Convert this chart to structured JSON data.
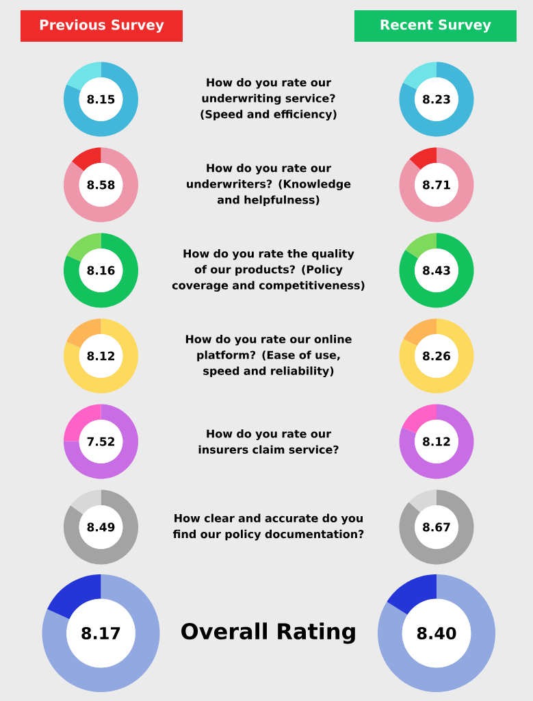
{
  "chart_data": [
    {
      "type": "other",
      "annotations": [
        "Previous Survey",
        "Recent Survey"
      ],
      "colors": [
        "#ee2b2b",
        "#12c167"
      ]
    },
    {
      "type": "donut",
      "categories": [
        null,
        null
      ],
      "values": [
        81.5,
        18.5
      ],
      "colors": [
        "#42b7d9",
        "#6fe3e8"
      ],
      "annotations": [
        "8.15"
      ]
    },
    {
      "type": "other",
      "title": "How do you rate our underwriting service? (Speed and efficiency)"
    },
    {
      "type": "donut",
      "categories": [
        null,
        null
      ],
      "values": [
        82.3,
        17.7
      ],
      "colors": [
        "#42b7d9",
        "#6fe3e8"
      ],
      "annotations": [
        "8.23"
      ]
    },
    {
      "type": "donut",
      "categories": [
        null,
        null
      ],
      "values": [
        85.8,
        14.2
      ],
      "colors": [
        "#ee97aa",
        "#ee2b2b"
      ],
      "annotations": [
        "8.58"
      ]
    },
    {
      "type": "other",
      "title": "How do you rate our underwriters? (Knowledge and helpfulness)"
    },
    {
      "type": "donut",
      "categories": [
        null,
        null
      ],
      "values": [
        87.1,
        12.9
      ],
      "colors": [
        "#ee97aa",
        "#ee2b2b"
      ],
      "annotations": [
        "8.71"
      ]
    },
    {
      "type": "donut",
      "categories": [
        null,
        null
      ],
      "values": [
        81.6,
        18.4
      ],
      "colors": [
        "#13c25c",
        "#7fd95c"
      ],
      "annotations": [
        "8.16"
      ]
    },
    {
      "type": "other",
      "title": "How do you rate the quality of our products? (Policy coverage and competitiveness)"
    },
    {
      "type": "donut",
      "categories": [
        null,
        null
      ],
      "values": [
        84.3,
        15.7
      ],
      "colors": [
        "#13c25c",
        "#7fd95c"
      ],
      "annotations": [
        "8.43"
      ]
    },
    {
      "type": "donut",
      "categories": [
        null,
        null
      ],
      "values": [
        81.2,
        18.8
      ],
      "colors": [
        "#fdd95e",
        "#fcb657"
      ],
      "annotations": [
        "8.12"
      ]
    },
    {
      "type": "other",
      "title": "How do you rate our online platform? (Ease of use, speed and reliability)"
    },
    {
      "type": "donut",
      "categories": [
        null,
        null
      ],
      "values": [
        82.6,
        17.4
      ],
      "colors": [
        "#fdd95e",
        "#fcb657"
      ],
      "annotations": [
        "8.26"
      ]
    },
    {
      "type": "donut",
      "categories": [
        null,
        null
      ],
      "values": [
        75.2,
        24.8
      ],
      "colors": [
        "#c86de3",
        "#ff62c7"
      ],
      "annotations": [
        "7.52"
      ]
    },
    {
      "type": "other",
      "title": "How do you rate our insurers claim service?"
    },
    {
      "type": "donut",
      "categories": [
        null,
        null
      ],
      "values": [
        81.2,
        18.8
      ],
      "colors": [
        "#c86de3",
        "#ff62c7"
      ],
      "annotations": [
        "8.12"
      ]
    },
    {
      "type": "donut",
      "categories": [
        null,
        null
      ],
      "values": [
        84.9,
        15.1
      ],
      "colors": [
        "#a3a3a3",
        "#d8d8d8"
      ],
      "annotations": [
        "8.49"
      ]
    },
    {
      "type": "other",
      "title": "How clear and accurate do you find our policy documentation?"
    },
    {
      "type": "donut",
      "categories": [
        null,
        null
      ],
      "values": [
        86.7,
        13.3
      ],
      "colors": [
        "#a3a3a3",
        "#d8d8d8"
      ],
      "annotations": [
        "8.67"
      ]
    },
    {
      "type": "donut",
      "categories": [
        null,
        null
      ],
      "values": [
        81.7,
        18.3
      ],
      "colors": [
        "#91a9e0",
        "#2536d9"
      ],
      "annotations": [
        "8.17"
      ]
    },
    {
      "type": "other",
      "title": "Overall Rating"
    },
    {
      "type": "donut",
      "categories": [
        null,
        null
      ],
      "values": [
        84.0,
        16.0
      ],
      "colors": [
        "#91a9e0",
        "#2536d9"
      ],
      "annotations": [
        "8.40"
      ]
    }
  ]
}
